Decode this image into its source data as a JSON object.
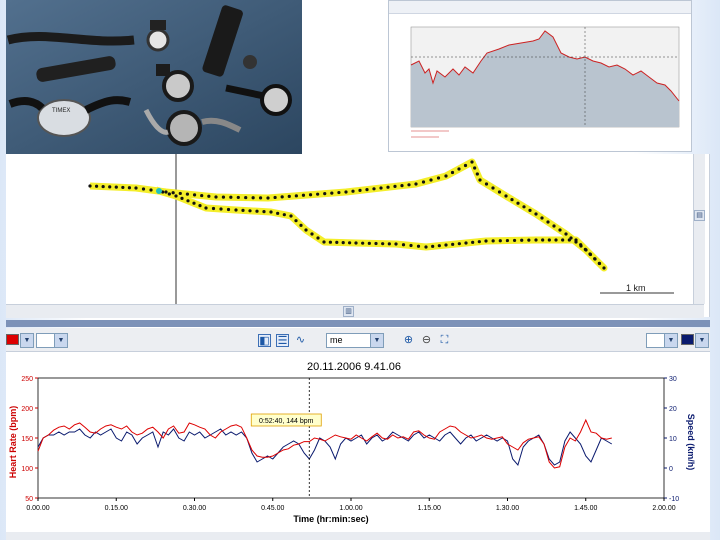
{
  "map": {
    "scale_label": "1 km"
  },
  "toolbar": {
    "units_value": "me",
    "left_color": "#dd0000",
    "right_color": "#0a1a6e"
  },
  "chart_data": {
    "type": "line",
    "title": "20.11.2006 9.41.06",
    "xlabel": "Time (hr:min:sec)",
    "ylabel": "Heart Rate (bpm)",
    "ylabel_right": "Speed (km/h)",
    "x_ticks": [
      "0.00.00",
      "0.15.00",
      "0.30.00",
      "0.45.00",
      "1.00.00",
      "1.15.00",
      "1.30.00",
      "1.45.00",
      "2.00.00"
    ],
    "y_ticks": [
      50,
      100,
      150,
      200,
      250
    ],
    "y_right_ticks": [
      -10,
      0,
      10,
      20,
      30
    ],
    "ylim": [
      50,
      250
    ],
    "ylim_right": [
      -10,
      30
    ],
    "xlim_minutes": [
      0,
      120
    ],
    "cursor_minutes": 52,
    "tooltip": "0:52:40, 144 bpm",
    "grid": false,
    "series": [
      {
        "axis": "left",
        "color": "#dd0000",
        "x": [
          0,
          1,
          2,
          3,
          4,
          5,
          6,
          7,
          8,
          9,
          10,
          11,
          12,
          13,
          14,
          15,
          16,
          17,
          18,
          19,
          20,
          21,
          22,
          23,
          24,
          25,
          26,
          27,
          28,
          29,
          30,
          31,
          32,
          33,
          34,
          35,
          36,
          37,
          38,
          39,
          40,
          41,
          42,
          43,
          44,
          45,
          46,
          47,
          48,
          49,
          50,
          51,
          52,
          53,
          54,
          55,
          56,
          57,
          58,
          59,
          60,
          61,
          62,
          63,
          64,
          65,
          66,
          67,
          68,
          69,
          70,
          71,
          72,
          73,
          74,
          75,
          76,
          77,
          78,
          79,
          80,
          81,
          82,
          83,
          84,
          85,
          86,
          87,
          88,
          89,
          90,
          91,
          92,
          93,
          94,
          95,
          96,
          97,
          98,
          99,
          100,
          101,
          102,
          103,
          104,
          105,
          106,
          107,
          108,
          109,
          110
        ],
        "values": [
          128,
          150,
          155,
          163,
          168,
          170,
          165,
          172,
          175,
          168,
          160,
          158,
          165,
          170,
          172,
          168,
          165,
          170,
          160,
          155,
          158,
          165,
          168,
          160,
          150,
          165,
          170,
          158,
          160,
          175,
          172,
          168,
          165,
          155,
          150,
          160,
          165,
          170,
          172,
          168,
          150,
          130,
          120,
          118,
          118,
          120,
          125,
          130,
          132,
          138,
          140,
          144,
          144,
          150,
          148,
          145,
          150,
          155,
          152,
          150,
          148,
          155,
          150,
          145,
          152,
          158,
          150,
          148,
          155,
          150,
          152,
          148,
          160,
          162,
          155,
          150,
          148,
          160,
          165,
          170,
          168,
          160,
          155,
          150,
          152,
          155,
          150,
          148,
          150,
          152,
          140,
          135,
          130,
          142,
          148,
          150,
          152,
          140,
          110,
          100,
          102,
          135,
          150,
          145,
          160,
          180,
          160,
          158,
          150,
          148,
          150
        ]
      },
      {
        "axis": "right",
        "color": "#0a1a6e",
        "x": [
          0,
          1,
          2,
          3,
          4,
          5,
          6,
          7,
          8,
          9,
          10,
          11,
          12,
          13,
          14,
          15,
          16,
          17,
          18,
          19,
          20,
          21,
          22,
          23,
          24,
          25,
          26,
          27,
          28,
          29,
          30,
          31,
          32,
          33,
          34,
          35,
          36,
          37,
          38,
          39,
          40,
          41,
          42,
          43,
          44,
          45,
          46,
          47,
          48,
          49,
          50,
          51,
          52,
          53,
          54,
          55,
          56,
          57,
          58,
          59,
          60,
          61,
          62,
          63,
          64,
          65,
          66,
          67,
          68,
          69,
          70,
          71,
          72,
          73,
          74,
          75,
          76,
          77,
          78,
          79,
          80,
          81,
          82,
          83,
          84,
          85,
          86,
          87,
          88,
          89,
          90,
          91,
          92,
          93,
          94,
          95,
          96,
          97,
          98,
          99,
          100,
          101,
          102,
          103,
          104,
          105,
          106,
          107,
          108,
          109,
          110
        ],
        "values": [
          7,
          10,
          11,
          11,
          12,
          11,
          12,
          12,
          13,
          11,
          10,
          12,
          11,
          12,
          13,
          10,
          9,
          12,
          11,
          8,
          10,
          11,
          12,
          7,
          12,
          11,
          13,
          10,
          9,
          12,
          11,
          12,
          10,
          11,
          12,
          13,
          11,
          12,
          11,
          12,
          10,
          5,
          2,
          3,
          4,
          3,
          5,
          7,
          8,
          9,
          8,
          5,
          3,
          6,
          10,
          9,
          7,
          3,
          8,
          10,
          9,
          10,
          11,
          8,
          10,
          11,
          9,
          10,
          12,
          11,
          10,
          9,
          11,
          12,
          10,
          11,
          10,
          9,
          11,
          12,
          10,
          8,
          10,
          11,
          9,
          10,
          11,
          10,
          9,
          10,
          9,
          3,
          1,
          7,
          9,
          10,
          11,
          8,
          3,
          1,
          2,
          9,
          12,
          10,
          8,
          4,
          2,
          6,
          10,
          9,
          8
        ]
      }
    ]
  }
}
